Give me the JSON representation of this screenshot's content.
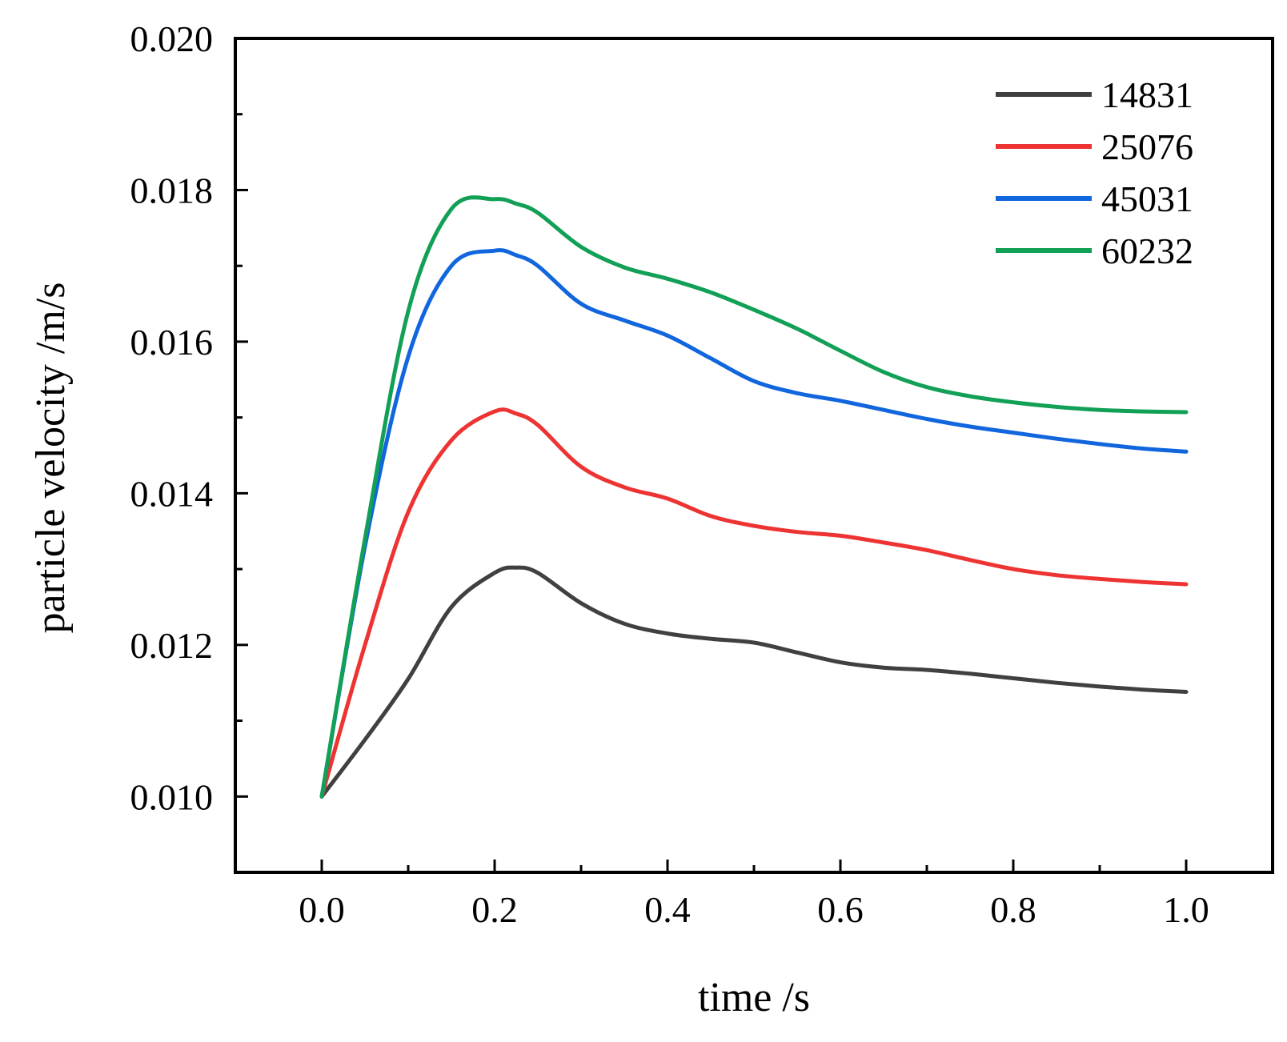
{
  "chart_data": {
    "type": "line",
    "title": "",
    "xlabel": "time /s",
    "ylabel": "particle velocity /m/s",
    "xlim": [
      -0.1,
      1.1
    ],
    "ylim": [
      0.009,
      0.02
    ],
    "x_ticks": [
      0.0,
      0.2,
      0.4,
      0.6,
      0.8,
      1.0
    ],
    "x_tick_labels": [
      "0.0",
      "0.2",
      "0.4",
      "0.6",
      "0.8",
      "1.0"
    ],
    "x_minor_ticks": [
      0.1,
      0.3,
      0.5,
      0.7,
      0.9
    ],
    "y_ticks": [
      0.01,
      0.012,
      0.014,
      0.016,
      0.018,
      0.02
    ],
    "y_tick_labels": [
      "0.010",
      "0.012",
      "0.014",
      "0.016",
      "0.018",
      "0.020"
    ],
    "y_minor_ticks": [
      0.011,
      0.013,
      0.015,
      0.017,
      0.019
    ],
    "grid": false,
    "legend_position": "top-right",
    "x": [
      0.0,
      0.05,
      0.1,
      0.15,
      0.2,
      0.225,
      0.25,
      0.3,
      0.35,
      0.4,
      0.45,
      0.5,
      0.55,
      0.6,
      0.65,
      0.7,
      0.75,
      0.8,
      0.85,
      0.9,
      0.95,
      1.0
    ],
    "series": [
      {
        "name": "14831",
        "color": "#404040",
        "values": [
          0.01,
          0.01075,
          0.01155,
          0.0125,
          0.01295,
          0.01302,
          0.01295,
          0.01255,
          0.01228,
          0.01215,
          0.01208,
          0.01203,
          0.0119,
          0.01177,
          0.0117,
          0.01167,
          0.01162,
          0.01156,
          0.0115,
          0.01145,
          0.01141,
          0.01138
        ]
      },
      {
        "name": "25076",
        "color": "#ee3333",
        "values": [
          0.01,
          0.012,
          0.01375,
          0.0147,
          0.01508,
          0.01505,
          0.0149,
          0.01435,
          0.01408,
          0.01393,
          0.0137,
          0.01357,
          0.01349,
          0.01344,
          0.01335,
          0.01325,
          0.01312,
          0.013,
          0.01292,
          0.01287,
          0.01283,
          0.0128
        ]
      },
      {
        "name": "45031",
        "color": "#1166dd",
        "values": [
          0.01,
          0.0133,
          0.0158,
          0.017,
          0.0172,
          0.01714,
          0.017,
          0.0165,
          0.01628,
          0.01608,
          0.01578,
          0.01548,
          0.01532,
          0.01522,
          0.0151,
          0.01498,
          0.01488,
          0.0148,
          0.01472,
          0.01465,
          0.01459,
          0.01455
        ]
      },
      {
        "name": "60232",
        "color": "#11a055",
        "values": [
          0.01,
          0.0134,
          0.0164,
          0.01775,
          0.01788,
          0.01782,
          0.0177,
          0.01725,
          0.01698,
          0.01683,
          0.01665,
          0.01642,
          0.01617,
          0.01588,
          0.0156,
          0.0154,
          0.01528,
          0.0152,
          0.01514,
          0.0151,
          0.01508,
          0.01507
        ]
      }
    ]
  }
}
